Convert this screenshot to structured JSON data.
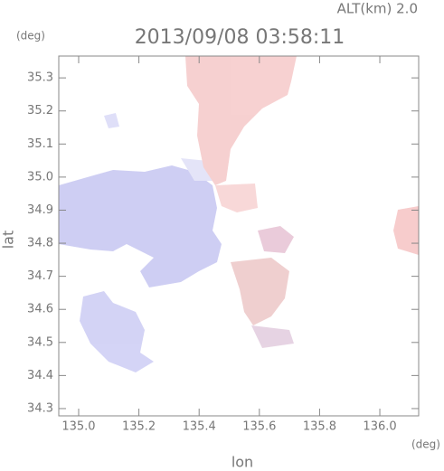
{
  "chart_data": {
    "type": "image",
    "title": "2013/09/08 03:58:11",
    "subtitle": "ALT(km) 2.0",
    "x_label": "lon",
    "y_label": "lat",
    "x_unit": "(deg)",
    "y_unit": "(deg)",
    "xlim": [
      134.934,
      136.129
    ],
    "ylim": [
      34.278,
      35.366
    ],
    "xticks": [
      {
        "value": 135,
        "label": "135.0"
      },
      135.2,
      135.4,
      135.6,
      135.8,
      {
        "value": 136,
        "label": "136.0"
      }
    ],
    "yticks": [
      34.3,
      34.4,
      34.5,
      34.6,
      34.7,
      34.8,
      34.9,
      {
        "value": 35,
        "label": "35.0"
      },
      35.1,
      35.2,
      35.3
    ]
  }
}
